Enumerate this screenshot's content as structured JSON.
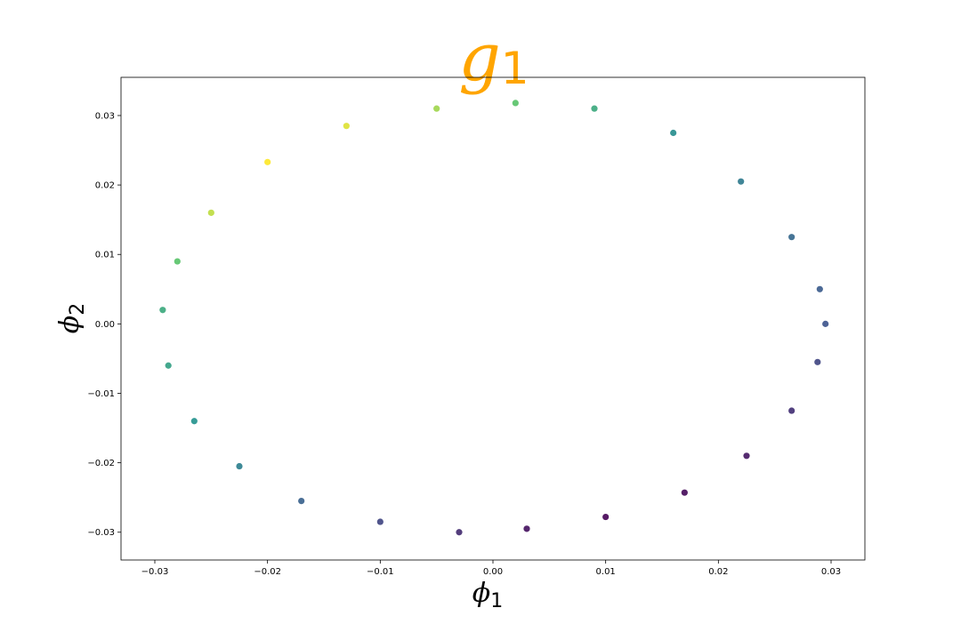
{
  "chart_data": {
    "type": "scatter",
    "title": {
      "base": "g",
      "subscript": "1",
      "color": "#ffa500"
    },
    "xlabel": {
      "base": "ϕ",
      "subscript": "1"
    },
    "ylabel": {
      "base": "ϕ",
      "subscript": "2"
    },
    "xlim": [
      -0.033,
      0.033
    ],
    "ylim": [
      -0.034,
      0.0355
    ],
    "xticks": [
      {
        "value": -0.03,
        "label": "−0.03"
      },
      {
        "value": -0.02,
        "label": "−0.02"
      },
      {
        "value": -0.01,
        "label": "−0.01"
      },
      {
        "value": 0.0,
        "label": "0.00"
      },
      {
        "value": 0.01,
        "label": "0.01"
      },
      {
        "value": 0.02,
        "label": "0.02"
      },
      {
        "value": 0.03,
        "label": "0.03"
      }
    ],
    "yticks": [
      {
        "value": -0.03,
        "label": "−0.03"
      },
      {
        "value": -0.02,
        "label": "−0.02"
      },
      {
        "value": -0.01,
        "label": "−0.01"
      },
      {
        "value": 0.0,
        "label": "0.00"
      },
      {
        "value": 0.01,
        "label": "0.01"
      },
      {
        "value": 0.02,
        "label": "0.02"
      },
      {
        "value": 0.03,
        "label": "0.03"
      }
    ],
    "grid": false,
    "colormap": "viridis",
    "colormap_stops": [
      "#440154",
      "#3b528b",
      "#21918c",
      "#5ec962",
      "#fde725"
    ],
    "series": [
      {
        "shape": "noisy ellipse",
        "points": [
          [
            0.0295,
            0.0
          ],
          [
            0.0288,
            -0.0055
          ],
          [
            0.0265,
            -0.0125
          ],
          [
            0.0225,
            -0.019
          ],
          [
            0.017,
            -0.0243
          ],
          [
            0.01,
            -0.0278
          ],
          [
            0.003,
            -0.0295
          ],
          [
            -0.003,
            -0.03
          ],
          [
            -0.01,
            -0.0285
          ],
          [
            -0.017,
            -0.0255
          ],
          [
            -0.0225,
            -0.0205
          ],
          [
            -0.0265,
            -0.014
          ],
          [
            -0.0288,
            -0.006
          ],
          [
            -0.0293,
            0.002
          ],
          [
            -0.028,
            0.009
          ],
          [
            -0.025,
            0.016
          ],
          [
            -0.02,
            0.0233
          ],
          [
            -0.013,
            0.0285
          ],
          [
            -0.005,
            0.031
          ],
          [
            0.002,
            0.0318
          ],
          [
            0.009,
            0.031
          ],
          [
            0.016,
            0.0275
          ],
          [
            0.022,
            0.0205
          ],
          [
            0.0265,
            0.0125
          ],
          [
            0.029,
            0.005
          ]
        ],
        "point_colors": [
          0.25,
          0.2,
          0.13,
          0.06,
          0.02,
          0.0,
          0.04,
          0.12,
          0.2,
          0.3,
          0.42,
          0.5,
          0.56,
          0.6,
          0.72,
          0.9,
          1.0,
          0.95,
          0.85,
          0.72,
          0.6,
          0.48,
          0.4,
          0.33,
          0.28
        ]
      }
    ]
  }
}
